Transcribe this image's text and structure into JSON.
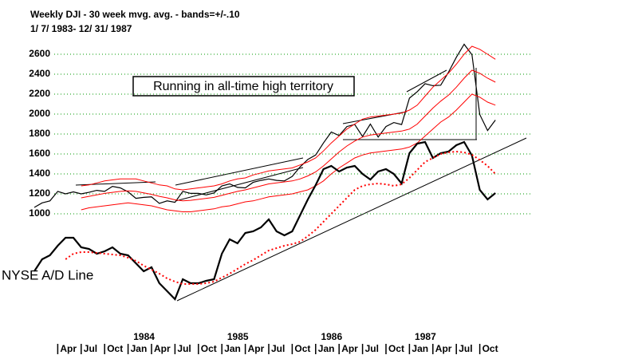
{
  "chart_data": {
    "type": "line",
    "title": "Weekly DJI - 30 week mvg. avg. - bands=+/-.10",
    "subtitle": "1/ 7/ 1983- 12/ 31/ 1987",
    "annotation": "Running in all-time high territory",
    "ad_label": "NYSE A/D Line",
    "x": [
      "1983-01",
      "1983-02",
      "1983-03",
      "1983-04",
      "1983-05",
      "1983-06",
      "1983-07",
      "1983-08",
      "1983-09",
      "1983-10",
      "1983-11",
      "1983-12",
      "1984-01",
      "1984-02",
      "1984-03",
      "1984-04",
      "1984-05",
      "1984-06",
      "1984-07",
      "1984-08",
      "1984-09",
      "1984-10",
      "1984-11",
      "1984-12",
      "1985-01",
      "1985-02",
      "1985-03",
      "1985-04",
      "1985-05",
      "1985-06",
      "1985-07",
      "1985-08",
      "1985-09",
      "1985-10",
      "1985-11",
      "1985-12",
      "1986-01",
      "1986-02",
      "1986-03",
      "1986-04",
      "1986-05",
      "1986-06",
      "1986-07",
      "1986-08",
      "1986-09",
      "1986-10",
      "1986-11",
      "1986-12",
      "1987-01",
      "1987-02",
      "1987-03",
      "1987-04",
      "1987-05",
      "1987-06",
      "1987-07",
      "1987-08",
      "1987-09",
      "1987-10",
      "1987-11",
      "1987-12"
    ],
    "series": [
      {
        "name": "DJI",
        "color": "#000000",
        "width": 1.2,
        "dash": "none",
        "values": [
          1064,
          1110,
          1130,
          1225,
          1200,
          1220,
          1200,
          1215,
          1235,
          1225,
          1275,
          1260,
          1220,
          1155,
          1165,
          1170,
          1105,
          1130,
          1115,
          1225,
          1205,
          1205,
          1190,
          1210,
          1280,
          1300,
          1265,
          1260,
          1315,
          1335,
          1350,
          1335,
          1330,
          1375,
          1470,
          1545,
          1590,
          1710,
          1820,
          1785,
          1875,
          1895,
          1775,
          1900,
          1770,
          1875,
          1915,
          1895,
          2160,
          2225,
          2305,
          2285,
          2290,
          2420,
          2570,
          2700,
          2595,
          1995,
          1835,
          1940
        ]
      },
      {
        "name": "30 week mvg. avg.",
        "color": "#ff0000",
        "width": 1,
        "dash": "none",
        "values": [
          null,
          null,
          null,
          null,
          null,
          null,
          1160,
          1175,
          1190,
          1205,
          1215,
          1225,
          1230,
          1225,
          1210,
          1195,
          1175,
          1160,
          1140,
          1130,
          1135,
          1145,
          1155,
          1165,
          1185,
          1205,
          1225,
          1240,
          1260,
          1280,
          1300,
          1310,
          1320,
          1330,
          1350,
          1380,
          1420,
          1480,
          1550,
          1620,
          1680,
          1730,
          1770,
          1790,
          1800,
          1810,
          1820,
          1830,
          1850,
          1900,
          1980,
          2060,
          2130,
          2190,
          2270,
          2360,
          2440,
          2410,
          2360,
          2320
        ]
      },
      {
        "name": "upper band",
        "color": "#ff0000",
        "width": 1,
        "dash": "none",
        "values": [
          null,
          null,
          null,
          null,
          null,
          null,
          1280,
          1290,
          1310,
          1330,
          1340,
          1350,
          1350,
          1350,
          1330,
          1310,
          1290,
          1280,
          1250,
          1240,
          1250,
          1260,
          1270,
          1280,
          1300,
          1330,
          1350,
          1360,
          1390,
          1410,
          1430,
          1440,
          1450,
          1460,
          1490,
          1520,
          1560,
          1630,
          1710,
          1780,
          1850,
          1900,
          1950,
          1970,
          1980,
          1990,
          2000,
          2010,
          2040,
          2090,
          2180,
          2270,
          2340,
          2410,
          2500,
          2600,
          2680,
          2650,
          2600,
          2550
        ]
      },
      {
        "name": "lower band",
        "color": "#ff0000",
        "width": 1,
        "dash": "none",
        "values": [
          null,
          null,
          null,
          null,
          null,
          null,
          1040,
          1060,
          1070,
          1080,
          1090,
          1100,
          1110,
          1100,
          1090,
          1080,
          1060,
          1040,
          1030,
          1020,
          1020,
          1030,
          1040,
          1050,
          1070,
          1080,
          1100,
          1120,
          1130,
          1150,
          1170,
          1180,
          1190,
          1200,
          1220,
          1240,
          1280,
          1330,
          1400,
          1460,
          1510,
          1560,
          1590,
          1610,
          1620,
          1630,
          1640,
          1650,
          1670,
          1710,
          1780,
          1850,
          1920,
          1970,
          2040,
          2120,
          2200,
          2170,
          2120,
          2090
        ]
      },
      {
        "name": "NYSE A/D Line",
        "color": "#000000",
        "width": 2.2,
        "dash": "none",
        "values": [
          424,
          544,
          584,
          680,
          760,
          760,
          664,
          648,
          600,
          624,
          664,
          600,
          584,
          504,
          424,
          464,
          304,
          224,
          144,
          344,
          304,
          304,
          328,
          344,
          600,
          744,
          704,
          808,
          824,
          864,
          944,
          824,
          784,
          824,
          984,
          1144,
          1288,
          1448,
          1480,
          1424,
          1464,
          1480,
          1400,
          1344,
          1424,
          1448,
          1400,
          1304,
          1608,
          1704,
          1720,
          1560,
          1608,
          1624,
          1688,
          1720,
          1584,
          1240,
          1144,
          1208
        ]
      },
      {
        "name": "A/D mvg. avg.",
        "color": "#ff0000",
        "width": 2,
        "dash": "2 3",
        "values": [
          null,
          null,
          null,
          null,
          544,
          600,
          616,
          616,
          608,
          600,
          592,
          584,
          560,
          528,
          480,
          440,
          400,
          352,
          320,
          296,
          296,
          296,
          304,
          320,
          360,
          400,
          448,
          496,
          536,
          584,
          632,
          656,
          680,
          696,
          720,
          776,
          840,
          920,
          1000,
          1080,
          1160,
          1240,
          1280,
          1296,
          1304,
          1296,
          1280,
          1296,
          1360,
          1440,
          1520,
          1560,
          1600,
          1616,
          1624,
          1616,
          1592,
          1540,
          1480,
          1400
        ]
      }
    ],
    "ylim": [
      0,
      2800
    ],
    "yticks": [
      1000,
      1200,
      1400,
      1600,
      1800,
      2000,
      2200,
      2400,
      2600
    ],
    "grid": true,
    "grid_color": "#009900",
    "xticks": [
      {
        "value": "1983-04",
        "label": "Apr"
      },
      {
        "value": "1983-07",
        "label": "Jul"
      },
      {
        "value": "1983-10",
        "label": "Oct"
      },
      {
        "value": "1984-01",
        "label": "Jan"
      },
      {
        "value": "1984-04",
        "label": "Apr"
      },
      {
        "value": "1984-07",
        "label": "Jul"
      },
      {
        "value": "1984-10",
        "label": "Oct"
      },
      {
        "value": "1985-01",
        "label": "Jan"
      },
      {
        "value": "1985-04",
        "label": "Apr"
      },
      {
        "value": "1985-07",
        "label": "Jul"
      },
      {
        "value": "1985-10",
        "label": "Oct"
      },
      {
        "value": "1986-01",
        "label": "Jan"
      },
      {
        "value": "1986-04",
        "label": "Apr"
      },
      {
        "value": "1986-07",
        "label": "Jul"
      },
      {
        "value": "1986-10",
        "label": "Oct"
      },
      {
        "value": "1987-01",
        "label": "Jan"
      },
      {
        "value": "1987-04",
        "label": "Apr"
      },
      {
        "value": "1987-07",
        "label": "Jul"
      },
      {
        "value": "1987-10",
        "label": "Oct"
      }
    ],
    "year_labels": [
      {
        "value": "1984-01",
        "label": "1984"
      },
      {
        "value": "1985-01",
        "label": "1985"
      },
      {
        "value": "1986-01",
        "label": "1986"
      },
      {
        "value": "1987-01",
        "label": "1987"
      }
    ]
  }
}
